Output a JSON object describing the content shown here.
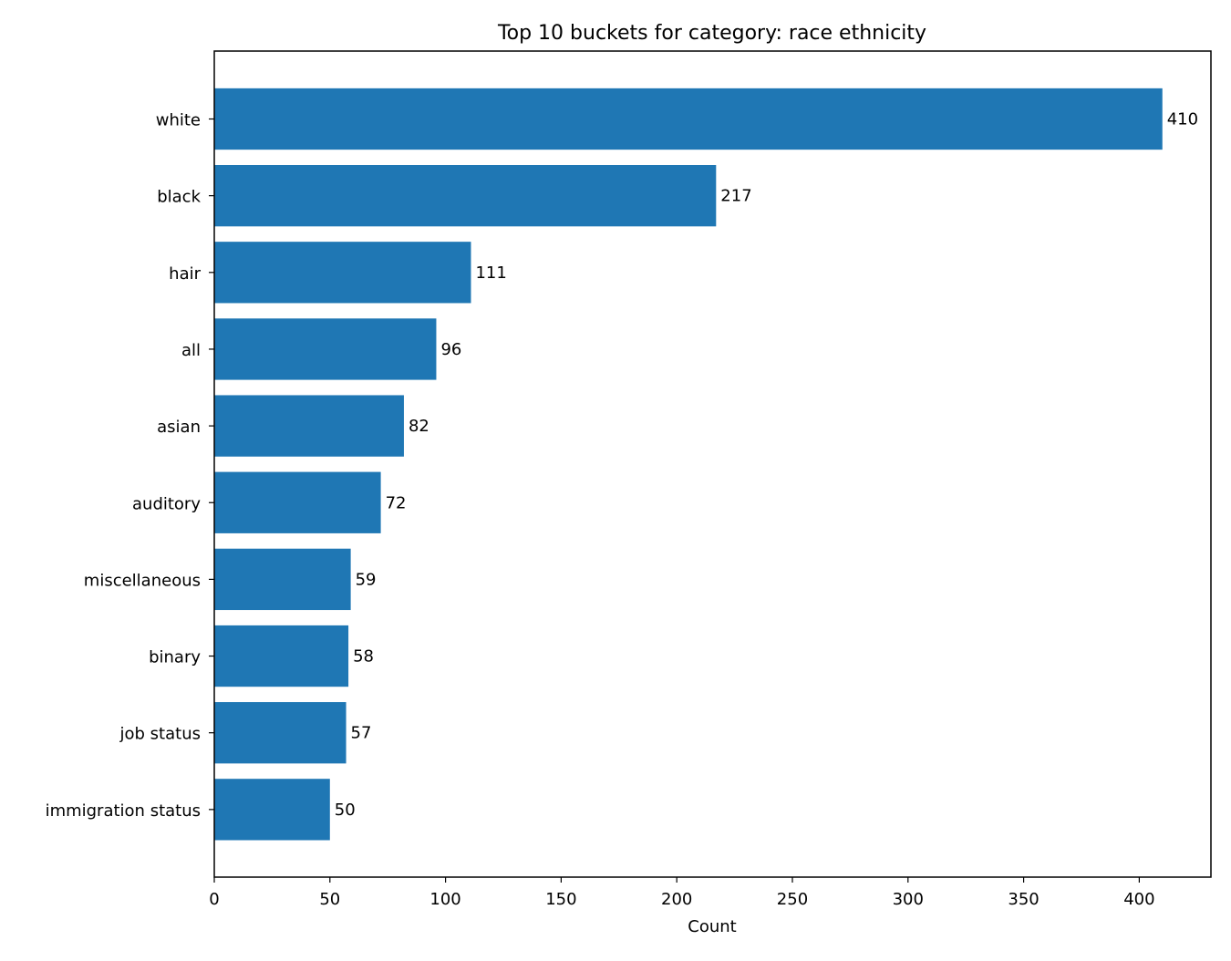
{
  "chart_data": {
    "type": "bar",
    "orientation": "horizontal",
    "title": "Top 10 buckets for category: race ethnicity",
    "xlabel": "Count",
    "ylabel": "",
    "categories": [
      "white",
      "black",
      "hair",
      "all",
      "asian",
      "auditory",
      "miscellaneous",
      "binary",
      "job status",
      "immigration status"
    ],
    "values": [
      410,
      217,
      111,
      96,
      82,
      72,
      59,
      58,
      57,
      50
    ],
    "data_labels": [
      "410",
      "217",
      "111",
      "96",
      "82",
      "72",
      "59",
      "58",
      "57",
      "50"
    ],
    "xlim": [
      0,
      431
    ],
    "xticks": [
      0,
      50,
      100,
      150,
      200,
      250,
      300,
      350,
      400
    ],
    "xtick_labels": [
      "0",
      "50",
      "100",
      "150",
      "200",
      "250",
      "300",
      "350",
      "400"
    ],
    "grid": false,
    "legend": "none",
    "bar_color": "#1f77b4"
  }
}
